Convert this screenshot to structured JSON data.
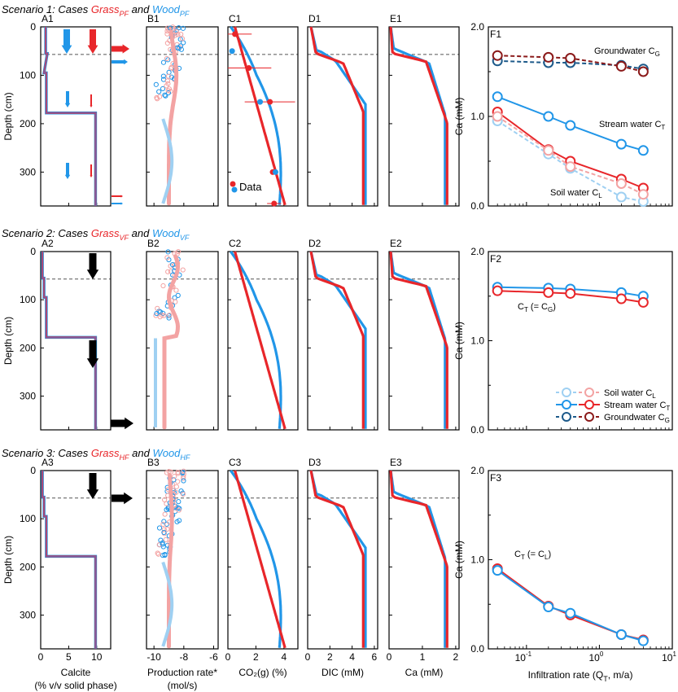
{
  "scenarios": [
    {
      "title": "Scenario 1: Cases ",
      "grass": "Grass",
      "grass_sub": "PF",
      "and": " and ",
      "wood": "Wood",
      "wood_sub": "PF",
      "panel_labels": [
        "A1",
        "B1",
        "C1",
        "D1",
        "E1",
        "F1"
      ]
    },
    {
      "title": "Scenario 2: Cases ",
      "grass": "Grass",
      "grass_sub": "VF",
      "and": " and ",
      "wood": "Wood",
      "wood_sub": "VF",
      "panel_labels": [
        "A2",
        "B2",
        "C2",
        "D2",
        "E2",
        "F2"
      ]
    },
    {
      "title": "Scenario 3: Cases ",
      "grass": "Grass",
      "grass_sub": "HF",
      "and": " and ",
      "wood": "Wood",
      "wood_sub": "HF",
      "panel_labels": [
        "A3",
        "B3",
        "C3",
        "D3",
        "E3",
        "F3"
      ]
    }
  ],
  "depth_axis": {
    "label": "Depth (cm)",
    "ticks": [
      "0",
      "100",
      "200",
      "300"
    ]
  },
  "bottom_axes": [
    {
      "ticks": [
        "0",
        "5",
        "10"
      ],
      "label_lines": [
        "Calcite",
        "(% v/v solid phase)"
      ]
    },
    {
      "ticks": [
        "-10",
        "-8",
        "-6"
      ],
      "label_lines": [
        "Production rate*",
        "(mol/s)"
      ]
    },
    {
      "ticks": [
        "0",
        "2",
        "4"
      ],
      "label_lines": [
        "CO₂(g) (%)"
      ]
    },
    {
      "ticks": [
        "0",
        "2",
        "4",
        "6"
      ],
      "label_lines": [
        "DIC (mM)"
      ]
    },
    {
      "ticks": [
        "0",
        "1",
        "2"
      ],
      "label_lines": [
        "Ca (mM)"
      ]
    }
  ],
  "f_axis": {
    "ylabel": "Ca (mM)",
    "yticks": [
      "0.0",
      "1.0",
      "2.0"
    ],
    "xlabel": "Infiltration rate (Q",
    "xlabel_sub": "T",
    "xlabel_end": ", m/a)",
    "xticks": [
      "10",
      "10",
      "10"
    ],
    "xtick_exp": [
      "-1",
      "0",
      "1"
    ]
  },
  "annotations": {
    "data_legend": "Data",
    "f1_ground": "Groundwater C",
    "f1_ground_sub": "G",
    "f1_stream": "Stream water C",
    "f1_stream_sub": "T",
    "f1_soil": "Soil water C",
    "f1_soil_sub": "L",
    "f2_ct": "C",
    "f2_ct_sub1": "T",
    "f2_ct_mid": " (= C",
    "f2_ct_sub2": "G",
    "f2_ct_end": ")",
    "f3_ct": "C",
    "f3_ct_sub1": "T",
    "f3_ct_mid": " (= C",
    "f3_ct_sub2": "L",
    "f3_ct_end": ")",
    "legend_soil": "Soil water C",
    "legend_soil_sub": "L",
    "legend_stream": "Stream water C",
    "legend_stream_sub": "T",
    "legend_ground": "Groundwater C",
    "legend_ground_sub": "G"
  },
  "colors": {
    "grass": "#e8262a",
    "wood": "#2196e8",
    "grass_light": "#f3a3a3",
    "wood_light": "#9fd0f2",
    "grass_dark": "#8b1a1a",
    "wood_dark": "#1d5a8a",
    "calcite": "#7b5fb0"
  },
  "chart_data": [
    {
      "type": "line",
      "panel": "F1",
      "x_scale": "log",
      "xlim": [
        0.03,
        10
      ],
      "ylim": [
        0,
        2
      ],
      "x": [
        0.04,
        0.2,
        0.4,
        2,
        4
      ],
      "series": [
        {
          "name": "Groundwater C_G",
          "group": "wood",
          "line": "dashed",
          "values": [
            1.62,
            1.6,
            1.6,
            1.57,
            1.53
          ]
        },
        {
          "name": "Groundwater C_G",
          "group": "grass",
          "line": "dashed",
          "values": [
            1.68,
            1.66,
            1.65,
            1.56,
            1.5
          ]
        },
        {
          "name": "Stream water C_T",
          "group": "wood",
          "line": "solid",
          "values": [
            1.22,
            1.0,
            0.9,
            0.69,
            0.62
          ]
        },
        {
          "name": "Stream water C_T",
          "group": "grass",
          "line": "solid",
          "values": [
            1.05,
            0.63,
            0.5,
            0.3,
            0.2
          ]
        },
        {
          "name": "Soil water C_L",
          "group": "wood",
          "line": "dashed-light",
          "values": [
            0.95,
            0.58,
            0.42,
            0.1,
            0.05
          ]
        },
        {
          "name": "Soil water C_L",
          "group": "grass",
          "line": "dashed-light",
          "values": [
            1.0,
            0.62,
            0.44,
            0.25,
            0.13
          ]
        }
      ]
    },
    {
      "type": "line",
      "panel": "F2",
      "x_scale": "log",
      "xlim": [
        0.03,
        10
      ],
      "ylim": [
        0,
        2
      ],
      "x": [
        0.04,
        0.2,
        0.4,
        2,
        4
      ],
      "series": [
        {
          "name": "Stream water C_T",
          "group": "wood",
          "line": "solid",
          "values": [
            1.6,
            1.59,
            1.58,
            1.54,
            1.5
          ]
        },
        {
          "name": "Stream water C_T",
          "group": "grass",
          "line": "solid",
          "values": [
            1.56,
            1.54,
            1.53,
            1.47,
            1.43
          ]
        }
      ]
    },
    {
      "type": "line",
      "panel": "F3",
      "x_scale": "log",
      "xlim": [
        0.03,
        10
      ],
      "ylim": [
        0,
        2
      ],
      "x": [
        0.04,
        0.2,
        0.4,
        2,
        4
      ],
      "series": [
        {
          "name": "Stream water C_T",
          "group": "grass",
          "line": "solid",
          "values": [
            0.9,
            0.48,
            0.38,
            0.16,
            0.1
          ]
        },
        {
          "name": "Stream water C_T",
          "group": "wood",
          "line": "solid",
          "values": [
            0.88,
            0.47,
            0.4,
            0.16,
            0.09
          ]
        }
      ]
    },
    {
      "type": "line",
      "panel": "C1",
      "xlim": [
        0,
        5
      ],
      "ylim_depth": [
        0,
        370
      ],
      "series": [
        {
          "name": "Data",
          "group": "grass",
          "points": [
            [
              0.5,
              15
            ],
            [
              1.5,
              85
            ],
            [
              3.0,
              155
            ],
            [
              3.2,
              300
            ],
            [
              3.3,
              365
            ]
          ],
          "xerr": [
            1.2,
            1.6,
            1.8,
            0.2,
            0.5
          ]
        },
        {
          "name": "Data",
          "group": "wood",
          "points": [
            [
              0.3,
              50
            ],
            [
              2.3,
              155
            ],
            [
              3.4,
              300
            ]
          ]
        }
      ]
    }
  ]
}
